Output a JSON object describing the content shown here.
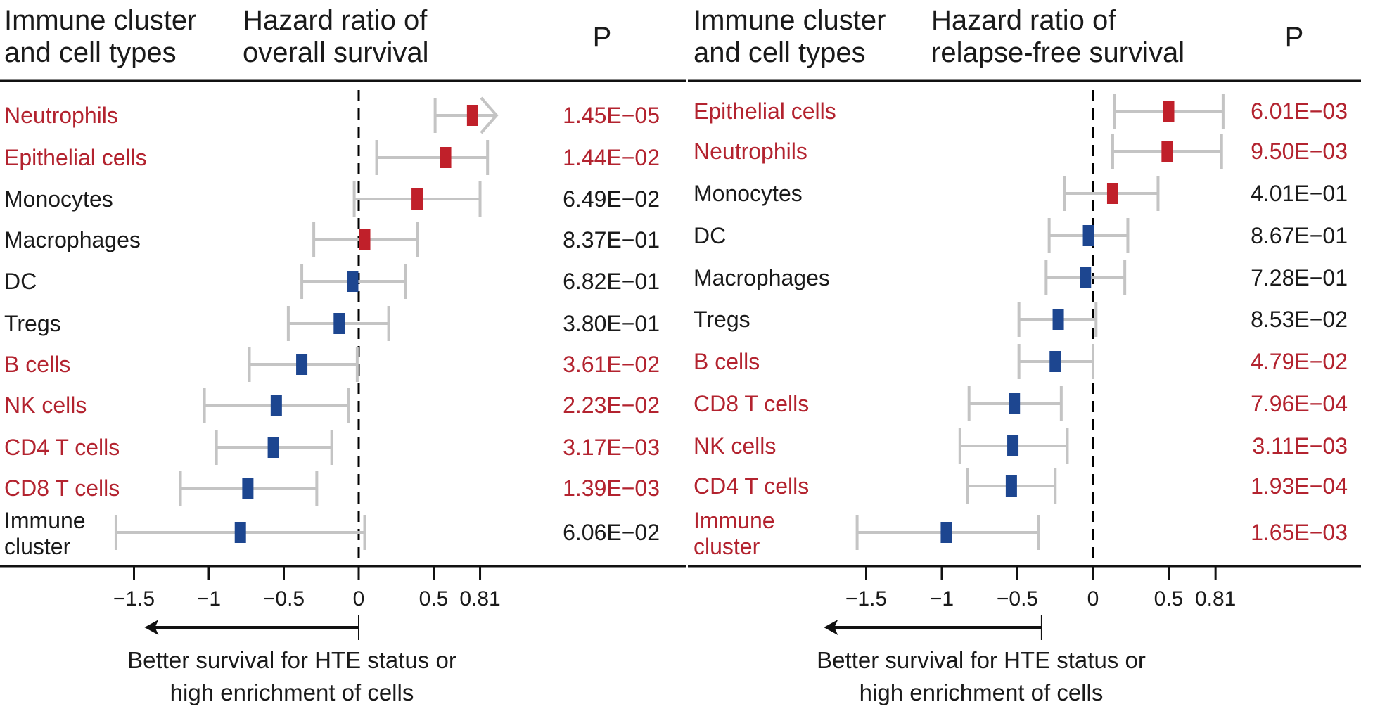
{
  "chart_data": [
    {
      "type": "forest",
      "panel": "overall-survival",
      "header": {
        "label_col": [
          "Immune cluster",
          "and cell types"
        ],
        "plot_col": [
          "Hazard ratio of",
          "overall survival"
        ],
        "p_col": "P"
      },
      "xlabel": "Hazard ratio of overall survival",
      "xticks": [
        -1.5,
        -1,
        -0.5,
        0,
        0.5,
        0.81
      ],
      "xtick_labels": [
        "−1.5",
        "−1",
        "−0.5",
        "0",
        "0.5",
        "0.81"
      ],
      "xlim": [
        -1.75,
        0.95
      ],
      "reference_line": 0,
      "annotation": {
        "text": [
          "Better survival for HTE status or",
          "high enrichment of cells"
        ],
        "arrow_from": 0,
        "arrow_to": -1.43
      },
      "rows": [
        {
          "label": "Neutrophils",
          "estimate": 0.76,
          "lower": 0.51,
          "upper": 0.95,
          "upper_truncated": true,
          "p": "1.45E−05",
          "significant": true
        },
        {
          "label": "Epithelial cells",
          "estimate": 0.58,
          "lower": 0.12,
          "upper": 0.86,
          "p": "1.44E−02",
          "significant": true
        },
        {
          "label": "Monocytes",
          "estimate": 0.39,
          "lower": -0.03,
          "upper": 0.81,
          "p": "6.49E−02",
          "significant": false
        },
        {
          "label": "Macrophages",
          "estimate": 0.04,
          "lower": -0.3,
          "upper": 0.39,
          "p": "8.37E−01",
          "significant": false
        },
        {
          "label": "DC",
          "estimate": -0.04,
          "lower": -0.38,
          "upper": 0.31,
          "p": "6.82E−01",
          "significant": false
        },
        {
          "label": "Tregs",
          "estimate": -0.13,
          "lower": -0.47,
          "upper": 0.2,
          "p": "3.80E−01",
          "significant": false
        },
        {
          "label": "B cells",
          "estimate": -0.38,
          "lower": -0.73,
          "upper": -0.01,
          "p": "3.61E−02",
          "significant": true
        },
        {
          "label": "NK cells",
          "estimate": -0.55,
          "lower": -1.03,
          "upper": -0.07,
          "p": "2.23E−02",
          "significant": true
        },
        {
          "label": "CD4 T cells",
          "estimate": -0.57,
          "lower": -0.95,
          "upper": -0.18,
          "p": "3.17E−03",
          "significant": true
        },
        {
          "label": "CD8 T cells",
          "estimate": -0.74,
          "lower": -1.19,
          "upper": -0.28,
          "p": "1.39E−03",
          "significant": true
        },
        {
          "label": "Immune\ncluster",
          "estimate": -0.79,
          "lower": -1.62,
          "upper": 0.04,
          "p": "6.06E−02",
          "significant": false
        }
      ]
    },
    {
      "type": "forest",
      "panel": "relapse-free-survival",
      "header": {
        "label_col": [
          "Immune cluster",
          "and cell types"
        ],
        "plot_col": [
          "Hazard ratio of",
          "relapse-free survival"
        ],
        "p_col": "P"
      },
      "xlabel": "Hazard ratio of relapse-free survival",
      "xticks": [
        -1.5,
        -1,
        -0.5,
        0,
        0.5,
        0.81
      ],
      "xtick_labels": [
        "−1.5",
        "−1",
        "−0.5",
        "0",
        "0.5",
        "0.81"
      ],
      "xlim": [
        -1.75,
        0.95
      ],
      "reference_line": 0,
      "annotation": {
        "text": [
          "Better survival for HTE status or",
          "high enrichment of cells"
        ],
        "arrow_from": -0.34,
        "arrow_to": -1.78
      },
      "rows": [
        {
          "label": "Epithelial cells",
          "estimate": 0.5,
          "lower": 0.14,
          "upper": 0.86,
          "p": "6.01E−03",
          "significant": true
        },
        {
          "label": "Neutrophils",
          "estimate": 0.49,
          "lower": 0.13,
          "upper": 0.85,
          "p": "9.50E−03",
          "significant": true
        },
        {
          "label": "Monocytes",
          "estimate": 0.13,
          "lower": -0.19,
          "upper": 0.43,
          "p": "4.01E−01",
          "significant": false
        },
        {
          "label": "DC",
          "estimate": -0.03,
          "lower": -0.29,
          "upper": 0.23,
          "p": "8.67E−01",
          "significant": false
        },
        {
          "label": "Macrophages",
          "estimate": -0.05,
          "lower": -0.31,
          "upper": 0.21,
          "p": "7.28E−01",
          "significant": false
        },
        {
          "label": "Tregs",
          "estimate": -0.23,
          "lower": -0.49,
          "upper": 0.02,
          "p": "8.53E−02",
          "significant": false
        },
        {
          "label": "B cells",
          "estimate": -0.25,
          "lower": -0.49,
          "upper": 0.0,
          "p": "4.79E−02",
          "significant": true
        },
        {
          "label": "CD8 T cells",
          "estimate": -0.52,
          "lower": -0.82,
          "upper": -0.21,
          "p": "7.96E−04",
          "significant": true
        },
        {
          "label": "NK cells",
          "estimate": -0.53,
          "lower": -0.88,
          "upper": -0.17,
          "p": "3.11E−03",
          "significant": true
        },
        {
          "label": "CD4 T cells",
          "estimate": -0.54,
          "lower": -0.83,
          "upper": -0.25,
          "p": "1.93E−04",
          "significant": true
        },
        {
          "label": "Immune\ncluster",
          "estimate": -0.97,
          "lower": -1.56,
          "upper": -0.36,
          "p": "1.65E−03",
          "significant": true
        }
      ]
    }
  ],
  "colors": {
    "significant_text": "#b3232f",
    "normal_text": "#1a1a1a",
    "positive_marker": "#c0202a",
    "negative_marker": "#1d4690",
    "ci_line": "#c4c4c4",
    "axis": "#111111"
  }
}
